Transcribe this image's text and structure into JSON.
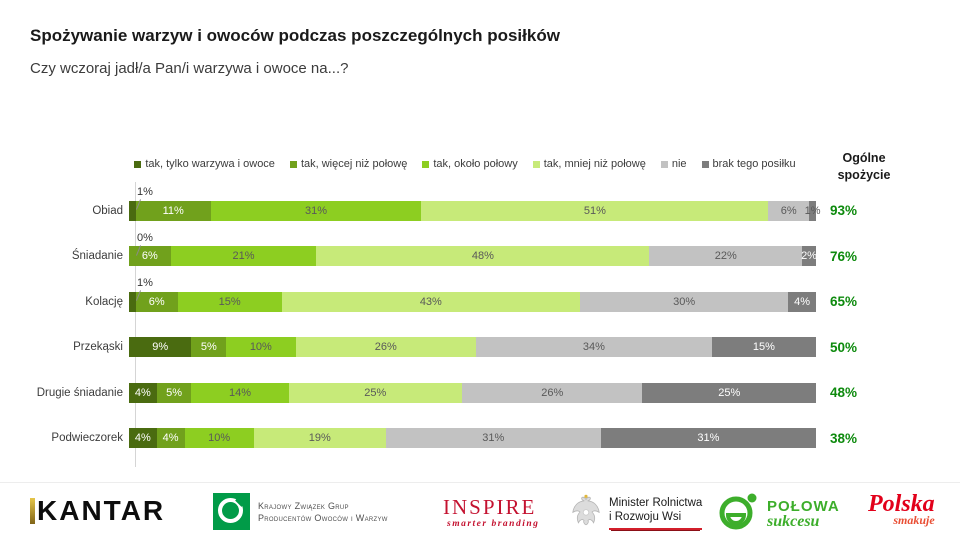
{
  "title": "Spożywanie warzyw i owoców podczas poszczególnych posiłków",
  "subtitle": "Czy wczoraj jadł/a Pan/i warzywa i owoce na...?",
  "chart_data": {
    "type": "bar",
    "variant": "horizontal-stacked-100",
    "title": "Spożywanie warzyw i owoców podczas poszczególnych posiłków",
    "question": "Czy wczoraj jadł/a Pan/i warzywa i owoce na...?",
    "legend": [
      "tak, tylko warzywa i owoce",
      "tak, więcej niż połowę",
      "tak, około połowy",
      "tak, mniej niż połowę",
      "nie",
      "brak tego posiłku"
    ],
    "colors": [
      "#4a6b10",
      "#71a11c",
      "#8dce21",
      "#c7ea79",
      "#c2c2c2",
      "#7d7d7d"
    ],
    "categories": [
      "Obiad",
      "Śniadanie",
      "Kolację",
      "Przekąski",
      "Drugie śniadanie",
      "Podwieczorek"
    ],
    "series": [
      {
        "name": "tak, tylko warzywa i owoce",
        "values": [
          1,
          0,
          1,
          9,
          4,
          4
        ]
      },
      {
        "name": "tak, więcej niż połowę",
        "values": [
          11,
          6,
          6,
          5,
          5,
          4
        ]
      },
      {
        "name": "tak, około połowy",
        "values": [
          31,
          21,
          15,
          10,
          14,
          10
        ]
      },
      {
        "name": "tak, mniej niż połowę",
        "values": [
          51,
          48,
          43,
          26,
          25,
          19
        ]
      },
      {
        "name": "nie",
        "values": [
          6,
          22,
          30,
          34,
          26,
          31
        ]
      },
      {
        "name": "brak tego posiłku",
        "values": [
          1,
          2,
          4,
          15,
          25,
          31
        ]
      }
    ],
    "callouts": [
      "1%",
      "0%",
      "1%",
      null,
      null,
      null
    ],
    "totals": [
      "93%",
      "76%",
      "65%",
      "50%",
      "48%",
      "38%"
    ],
    "total_header_line1": "Ogólne",
    "total_header_line2": "spożycie",
    "total_color": "#0d8a0d",
    "label_color_light": "#ffffff",
    "label_color_dark": "#595959",
    "legend_position": "top",
    "axis": "none"
  },
  "footer": {
    "kantar": {
      "text": "KANTAR"
    },
    "kzg": {
      "line1": "Krajowy Związek Grup",
      "line2": "Producentów Owoców i Warzyw"
    },
    "inspire": {
      "text": "INSPIRE",
      "tagline": "smarter branding"
    },
    "minister": {
      "line1": "Minister Rolnictwa",
      "line2": "i Rozwoju Wsi"
    },
    "polowa": {
      "line1": "POŁOWA",
      "line2": "sukcesu"
    },
    "polska": {
      "line1": "Polska",
      "line2": "smakuje"
    }
  }
}
